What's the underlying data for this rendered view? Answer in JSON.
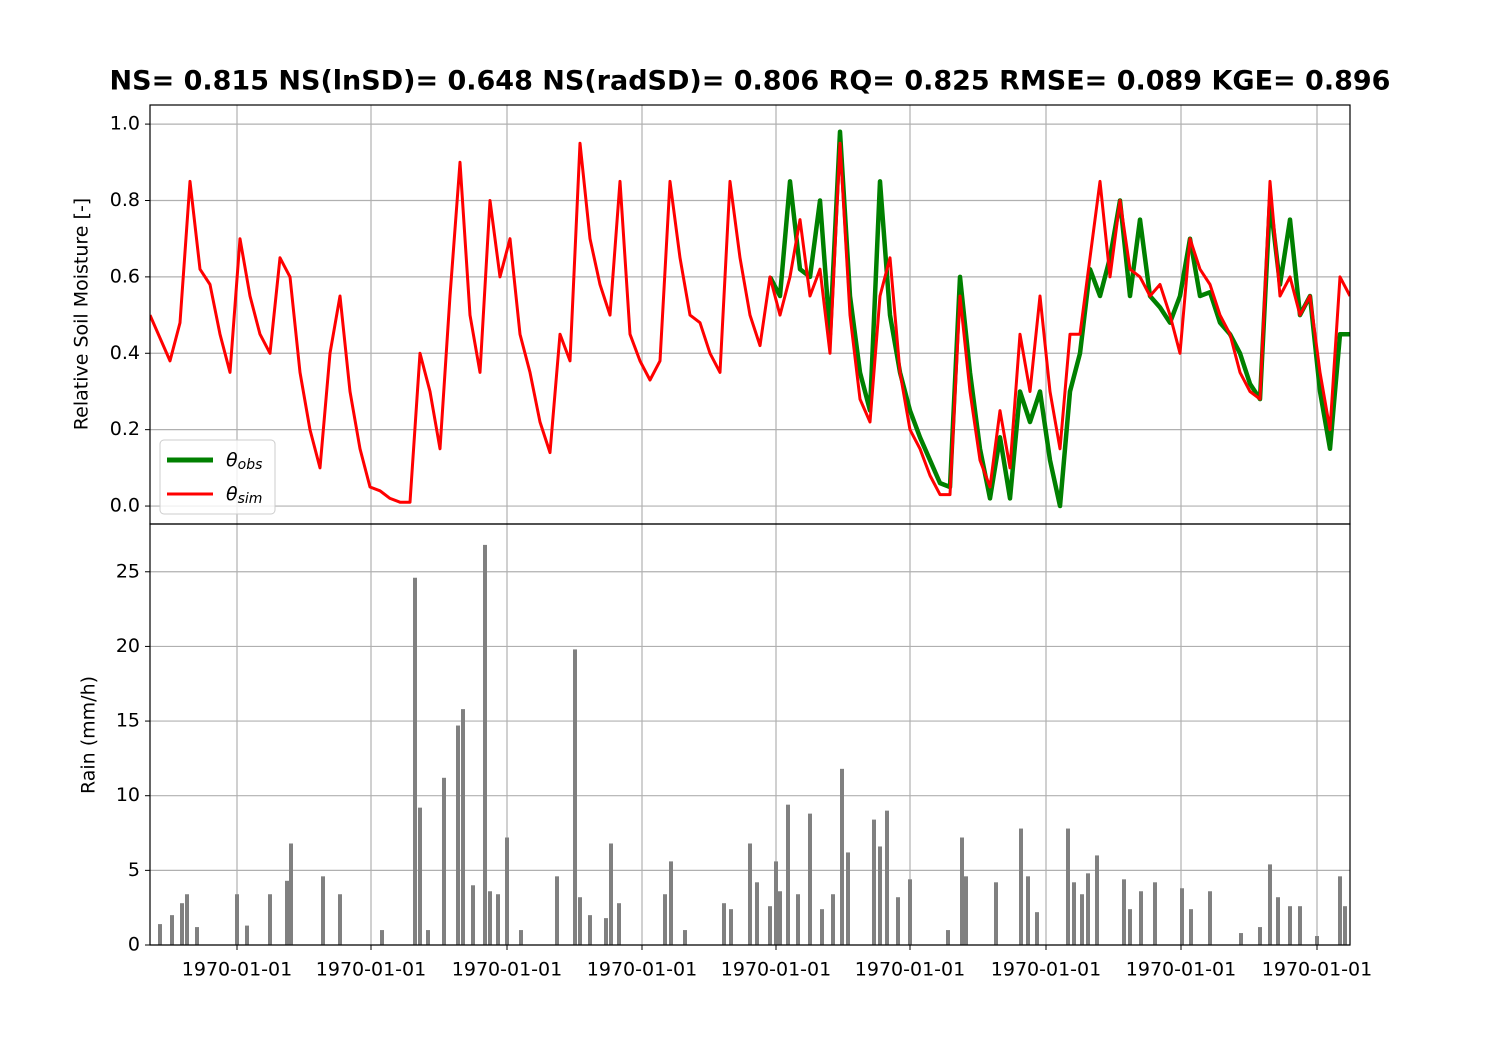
{
  "chart_data": [
    {
      "type": "line",
      "title": "NS= 0.815 NS(lnSD)= 0.648 NS(radSD)= 0.806 RQ= 0.825 RMSE= 0.089 KGE= 0.896",
      "y_label": "Relative Soil Moisture [-]",
      "x": [
        0,
        10,
        20,
        30,
        40,
        50,
        60,
        70,
        80,
        90,
        100,
        110,
        120,
        130,
        140,
        150,
        160,
        170,
        180,
        190,
        200,
        210,
        220,
        230,
        240,
        250,
        260,
        270,
        280,
        290,
        300,
        310,
        320,
        330,
        340,
        350,
        360,
        370,
        380,
        390,
        400,
        410,
        420,
        430,
        440,
        450,
        460,
        470,
        480,
        490,
        500,
        510,
        520,
        530,
        540,
        550,
        560,
        570,
        580,
        590,
        600,
        610,
        620,
        630,
        640,
        650,
        660,
        670,
        680,
        690,
        700,
        710,
        720,
        730,
        740,
        750,
        760,
        770,
        780,
        790,
        800,
        810,
        820,
        830,
        840,
        850,
        860,
        870,
        880,
        890,
        900,
        910,
        920,
        930,
        940,
        950,
        960,
        970,
        980,
        990,
        1000,
        1010,
        1020,
        1030,
        1040,
        1050,
        1060,
        1070,
        1080,
        1090,
        1100,
        1110,
        1120,
        1130,
        1140,
        1150,
        1160,
        1170,
        1180,
        1190,
        1200
      ],
      "series": [
        {
          "name": "θobs",
          "color": "#008000",
          "values": [
            null,
            null,
            null,
            null,
            null,
            null,
            null,
            null,
            null,
            null,
            null,
            null,
            null,
            null,
            null,
            null,
            null,
            null,
            null,
            null,
            null,
            null,
            null,
            null,
            null,
            null,
            null,
            null,
            null,
            null,
            null,
            null,
            null,
            null,
            null,
            null,
            null,
            null,
            null,
            null,
            null,
            null,
            null,
            null,
            null,
            null,
            null,
            null,
            null,
            null,
            null,
            null,
            null,
            null,
            null,
            null,
            null,
            null,
            null,
            null,
            null,
            null,
            0.6,
            0.55,
            0.85,
            0.62,
            0.6,
            0.8,
            0.45,
            0.98,
            0.55,
            0.35,
            0.25,
            0.85,
            0.5,
            0.35,
            0.25,
            0.18,
            0.12,
            0.06,
            0.05,
            0.6,
            0.35,
            0.15,
            0.02,
            0.18,
            0.02,
            0.3,
            0.22,
            0.3,
            0.12,
            0.0,
            0.3,
            0.4,
            0.62,
            0.55,
            0.65,
            0.8,
            0.55,
            0.75,
            0.55,
            0.52,
            0.48,
            0.55,
            0.7,
            0.55,
            0.56,
            0.48,
            0.45,
            0.4,
            0.32,
            0.28,
            0.8,
            0.58,
            0.75,
            0.5,
            0.55,
            0.3,
            0.15,
            0.45,
            0.45
          ]
        },
        {
          "name": "θsim",
          "color": "#ff0000",
          "values": [
            0.5,
            0.44,
            0.38,
            0.48,
            0.85,
            0.62,
            0.58,
            0.45,
            0.35,
            0.7,
            0.55,
            0.45,
            0.4,
            0.65,
            0.6,
            0.35,
            0.2,
            0.1,
            0.4,
            0.55,
            0.3,
            0.15,
            0.05,
            0.04,
            0.02,
            0.01,
            0.01,
            0.4,
            0.3,
            0.15,
            0.55,
            0.9,
            0.5,
            0.35,
            0.8,
            0.6,
            0.7,
            0.45,
            0.35,
            0.22,
            0.14,
            0.45,
            0.38,
            0.95,
            0.7,
            0.58,
            0.5,
            0.85,
            0.45,
            0.38,
            0.33,
            0.38,
            0.85,
            0.65,
            0.5,
            0.48,
            0.4,
            0.35,
            0.85,
            0.65,
            0.5,
            0.42,
            0.6,
            0.5,
            0.6,
            0.75,
            0.55,
            0.62,
            0.4,
            0.95,
            0.5,
            0.28,
            0.22,
            0.55,
            0.65,
            0.35,
            0.2,
            0.15,
            0.08,
            0.03,
            0.03,
            0.55,
            0.3,
            0.12,
            0.05,
            0.25,
            0.1,
            0.45,
            0.3,
            0.55,
            0.3,
            0.15,
            0.45,
            0.45,
            0.65,
            0.85,
            0.6,
            0.8,
            0.62,
            0.6,
            0.55,
            0.58,
            0.5,
            0.4,
            0.7,
            0.62,
            0.58,
            0.5,
            0.45,
            0.35,
            0.3,
            0.28,
            0.85,
            0.55,
            0.6,
            0.5,
            0.55,
            0.35,
            0.2,
            0.6,
            0.55
          ]
        }
      ],
      "xlim": [
        0,
        1200
      ],
      "xticks": [
        87,
        221,
        357,
        492,
        626,
        760,
        896,
        1031,
        1167
      ],
      "ylim": [
        -0.047,
        1.05
      ],
      "yticks": [
        {
          "value": 0,
          "label": "0.0"
        },
        0.2,
        0.4,
        0.6,
        0.8,
        {
          "value": 1,
          "label": "1.0"
        }
      ],
      "grid": true,
      "legend": "lower left"
    },
    {
      "type": "bar",
      "y_label": "Rain (mm/h)",
      "color": "#808080",
      "x": [
        10,
        22,
        32,
        37,
        47,
        87,
        97,
        120,
        137,
        141,
        173,
        190,
        232,
        265,
        270,
        278,
        294,
        308,
        313,
        323,
        335,
        340,
        348,
        357,
        371,
        407,
        425,
        430,
        440,
        456,
        461,
        469,
        515,
        521,
        535,
        574,
        581,
        600,
        607,
        620,
        626,
        630,
        638,
        648,
        660,
        672,
        683,
        692,
        698,
        724,
        730,
        737,
        748,
        760,
        798,
        812,
        816,
        846,
        871,
        878,
        887,
        918,
        924,
        932,
        938,
        947,
        974,
        980,
        991,
        1005,
        1032,
        1041,
        1060,
        1091,
        1110,
        1120,
        1128,
        1140,
        1150,
        1167,
        1190,
        1195
      ],
      "values": [
        1.4,
        2.0,
        2.8,
        3.4,
        1.2,
        3.4,
        1.3,
        3.4,
        4.3,
        6.8,
        4.6,
        3.4,
        1.0,
        24.6,
        9.2,
        1.0,
        11.2,
        14.7,
        15.8,
        4.0,
        26.8,
        3.6,
        3.4,
        7.2,
        1.0,
        4.6,
        19.8,
        3.2,
        2.0,
        1.8,
        6.8,
        2.8,
        3.4,
        5.6,
        1.0,
        2.8,
        2.4,
        6.8,
        4.2,
        2.6,
        5.6,
        3.6,
        9.4,
        3.4,
        8.8,
        2.4,
        3.4,
        11.8,
        6.2,
        8.4,
        6.6,
        9.0,
        3.2,
        4.4,
        1.0,
        7.2,
        4.6,
        4.2,
        7.8,
        4.6,
        2.2,
        7.8,
        4.2,
        3.4,
        4.8,
        6.0,
        4.4,
        2.4,
        3.6,
        4.2,
        3.8,
        2.4,
        3.6,
        0.8,
        1.2,
        5.4,
        3.2,
        2.6,
        2.6,
        0.6,
        4.6,
        2.6
      ],
      "xlim": [
        0,
        1200
      ],
      "xticks": [
        {
          "value": 87,
          "label": "1970-01-01"
        },
        {
          "value": 221,
          "label": "1970-01-01"
        },
        {
          "value": 357,
          "label": "1970-01-01"
        },
        {
          "value": 492,
          "label": "1970-01-01"
        },
        {
          "value": 626,
          "label": "1970-01-01"
        },
        {
          "value": 760,
          "label": "1970-01-01"
        },
        {
          "value": 896,
          "label": "1970-01-01"
        },
        {
          "value": 1031,
          "label": "1970-01-01"
        },
        {
          "value": 1167,
          "label": "1970-01-01"
        }
      ],
      "ylim": [
        0,
        28.2
      ],
      "yticks": [
        0,
        5,
        10,
        15,
        20,
        25
      ],
      "grid": true
    }
  ]
}
